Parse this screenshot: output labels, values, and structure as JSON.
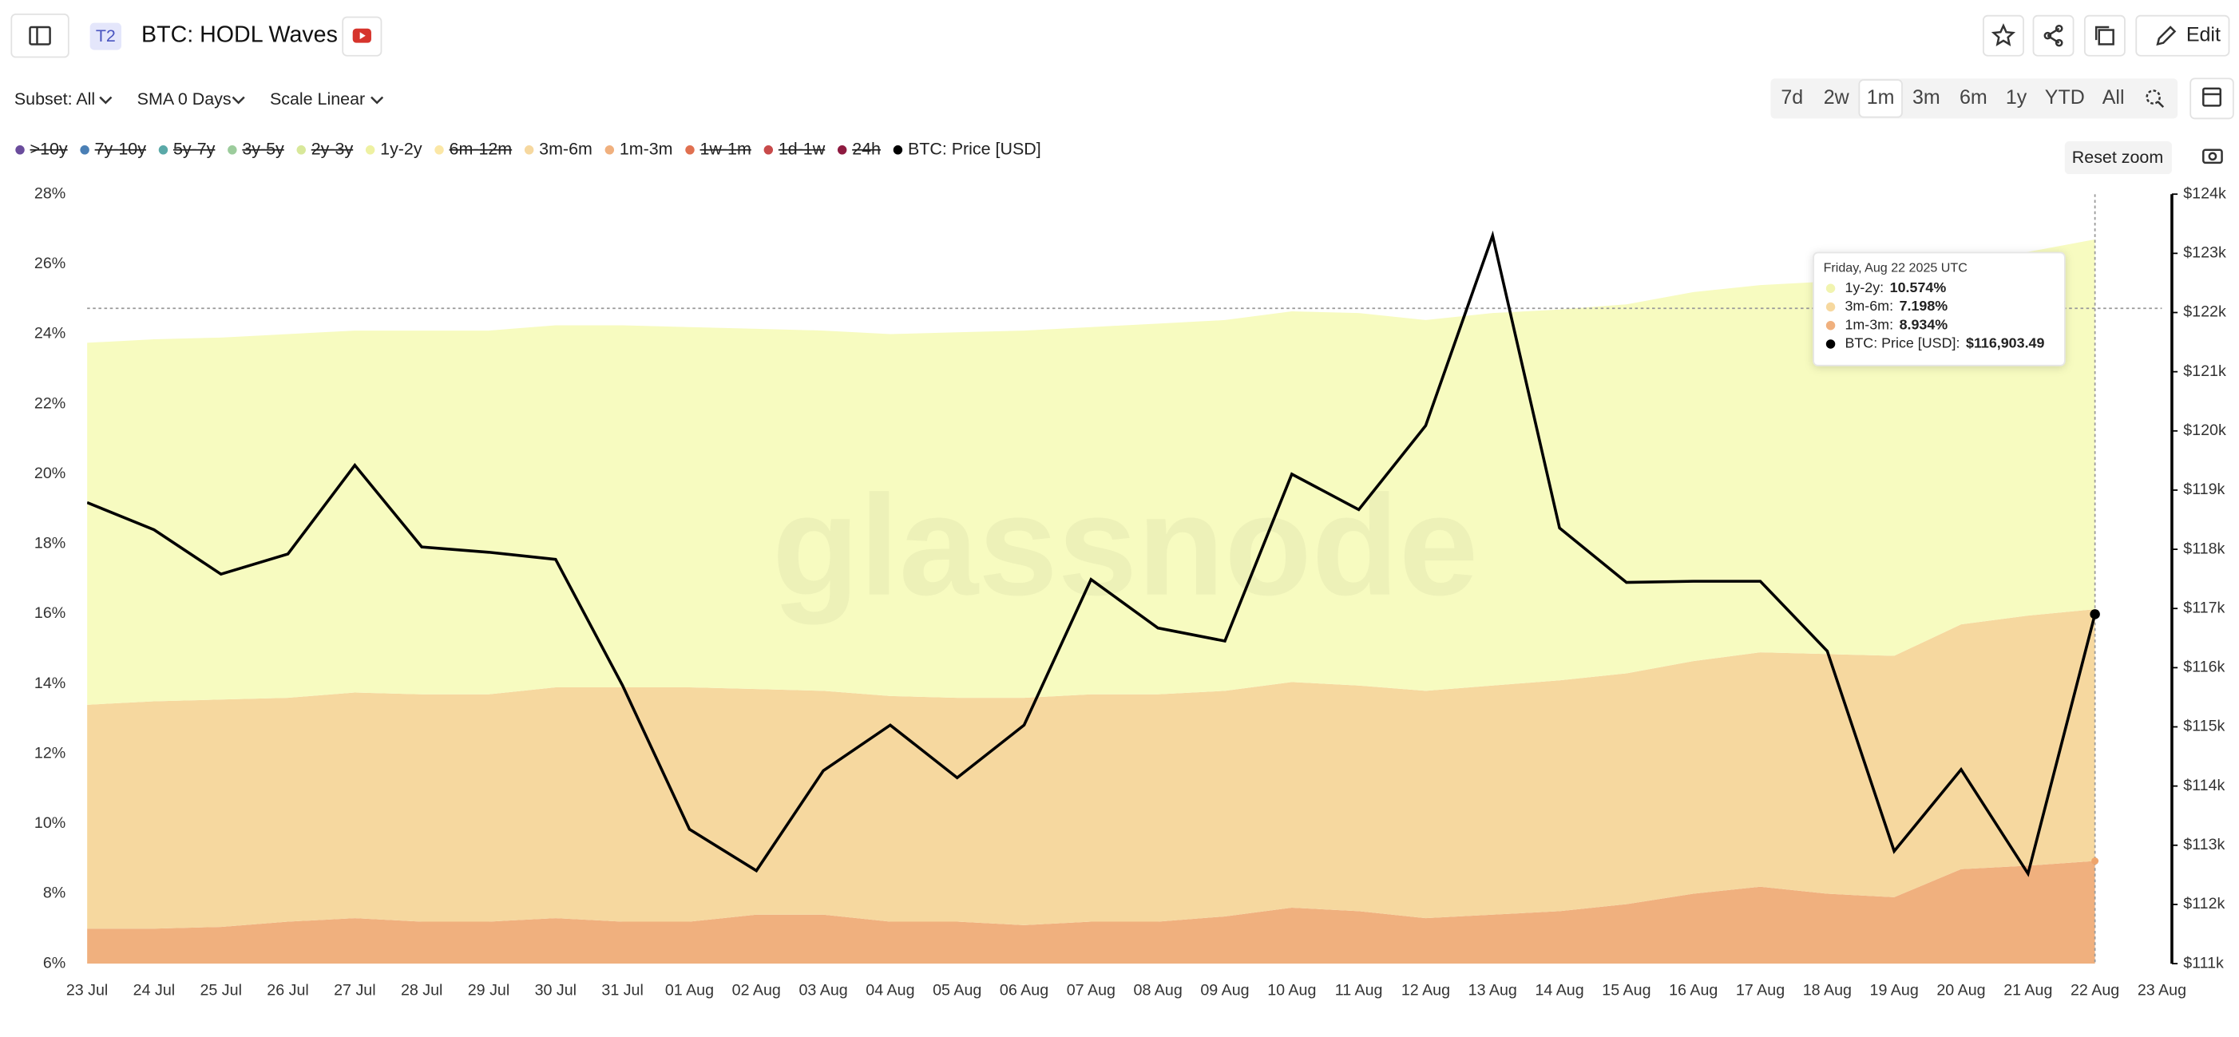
{
  "header": {
    "badge": "T2",
    "title": "BTC: HODL Waves",
    "edit": "Edit"
  },
  "toolbar": {
    "subset": "Subset: All",
    "sma": "SMA 0 Days",
    "scale": "Scale Linear",
    "ranges": [
      "7d",
      "2w",
      "1m",
      "3m",
      "6m",
      "1y",
      "YTD",
      "All"
    ],
    "selected_range": 2,
    "reset_zoom": "Reset zoom"
  },
  "watermark": "glassnode",
  "chart_data": {
    "type": "stacked-area",
    "categories": [
      "23 Jul",
      "24 Jul",
      "25 Jul",
      "26 Jul",
      "27 Jul",
      "28 Jul",
      "29 Jul",
      "30 Jul",
      "31 Jul",
      "01 Aug",
      "02 Aug",
      "03 Aug",
      "04 Aug",
      "05 Aug",
      "06 Aug",
      "07 Aug",
      "08 Aug",
      "09 Aug",
      "10 Aug",
      "11 Aug",
      "12 Aug",
      "13 Aug",
      "14 Aug",
      "15 Aug",
      "16 Aug",
      "17 Aug",
      "18 Aug",
      "19 Aug",
      "20 Aug",
      "21 Aug",
      "22 Aug",
      "23 Aug"
    ],
    "series": [
      {
        "name": ">10y",
        "color": "#6a4c9c",
        "visible": false
      },
      {
        "name": "7y-10y",
        "color": "#4a7fb5",
        "visible": false
      },
      {
        "name": "5y-7y",
        "color": "#5aa9a8",
        "visible": false
      },
      {
        "name": "3y-5y",
        "color": "#9ccc9c",
        "visible": false
      },
      {
        "name": "2y-3y",
        "color": "#d8e89a",
        "visible": false
      },
      {
        "name": "1y-2y",
        "color": "#f7fbc0",
        "visible": true,
        "stack": 2,
        "values": [
          10.35,
          10.35,
          10.35,
          10.4,
          10.35,
          10.4,
          10.4,
          10.35,
          10.35,
          10.3,
          10.3,
          10.3,
          10.35,
          10.45,
          10.5,
          10.5,
          10.6,
          10.6,
          10.6,
          10.65,
          10.6,
          10.65,
          10.6,
          10.55,
          10.55,
          10.5,
          10.65,
          10.9,
          10.3,
          10.4,
          10.574,
          null
        ]
      },
      {
        "name": "6m-12m",
        "color": "#fbe7a6",
        "visible": false
      },
      {
        "name": "3m-6m",
        "color": "#f6d89f",
        "visible": true,
        "stack": 1,
        "values": [
          6.4,
          6.5,
          6.5,
          6.4,
          6.45,
          6.5,
          6.5,
          6.6,
          6.7,
          6.7,
          6.45,
          6.4,
          6.45,
          6.4,
          6.5,
          6.5,
          6.5,
          6.45,
          6.45,
          6.45,
          6.5,
          6.55,
          6.6,
          6.6,
          6.65,
          6.7,
          6.85,
          6.9,
          7.0,
          7.15,
          7.198,
          null
        ]
      },
      {
        "name": "1m-3m",
        "color": "#f0b07e",
        "visible": true,
        "stack": 0,
        "values": [
          7.0,
          7.0,
          7.05,
          7.2,
          7.3,
          7.2,
          7.2,
          7.3,
          7.2,
          7.2,
          7.4,
          7.4,
          7.2,
          7.2,
          7.1,
          7.2,
          7.2,
          7.35,
          7.6,
          7.5,
          7.3,
          7.4,
          7.5,
          7.7,
          8.0,
          8.2,
          8.0,
          7.9,
          8.7,
          8.8,
          8.934,
          null
        ]
      },
      {
        "name": "1w-1m",
        "color": "#e07050",
        "visible": false
      },
      {
        "name": "1d-1w",
        "color": "#c84a4a",
        "visible": false
      },
      {
        "name": "24h",
        "color": "#8e1a40",
        "visible": false
      },
      {
        "name": "BTC: Price [USD]",
        "color": "#000000",
        "visible": true,
        "axis": "y2",
        "values": [
          118790,
          118330,
          117580,
          117920,
          119420,
          118040,
          117950,
          117830,
          115700,
          113270,
          112570,
          114260,
          115030,
          114140,
          115030,
          117490,
          116670,
          116450,
          119270,
          118670,
          120090,
          123300,
          118360,
          117440,
          117460,
          117460,
          116280,
          112900,
          114280,
          112520,
          116903.49,
          null
        ]
      }
    ],
    "ylim": [
      6,
      28
    ],
    "yticks": [
      {
        "value": 6,
        "label": "6%"
      },
      {
        "value": 8,
        "label": "8%"
      },
      {
        "value": 10,
        "label": "10%"
      },
      {
        "value": 12,
        "label": "12%"
      },
      {
        "value": 14,
        "label": "14%"
      },
      {
        "value": 16,
        "label": "16%"
      },
      {
        "value": 18,
        "label": "18%"
      },
      {
        "value": 20,
        "label": "20%"
      },
      {
        "value": 22,
        "label": "22%"
      },
      {
        "value": 24,
        "label": "24%"
      },
      {
        "value": 26,
        "label": "26%"
      },
      {
        "value": 28,
        "label": "28%"
      }
    ],
    "y2lim": [
      111000,
      124000
    ],
    "y2ticks": [
      {
        "value": 111000,
        "label": "$111k"
      },
      {
        "value": 112000,
        "label": "$112k"
      },
      {
        "value": 113000,
        "label": "$113k"
      },
      {
        "value": 114000,
        "label": "$114k"
      },
      {
        "value": 115000,
        "label": "$115k"
      },
      {
        "value": 116000,
        "label": "$116k"
      },
      {
        "value": 117000,
        "label": "$117k"
      },
      {
        "value": 118000,
        "label": "$118k"
      },
      {
        "value": 119000,
        "label": "$119k"
      },
      {
        "value": 120000,
        "label": "$120k"
      },
      {
        "value": 121000,
        "label": "$121k"
      },
      {
        "value": 122000,
        "label": "$122k"
      },
      {
        "value": 123000,
        "label": "$123k"
      },
      {
        "value": 124000,
        "label": "$124k"
      }
    ],
    "grid": false,
    "tooltip": {
      "title": "Friday, Aug 22 2025 UTC",
      "index": 30,
      "series": [
        5,
        7,
        8,
        12
      ],
      "values": [
        "10.574%",
        "7.198%",
        "8.934%",
        "$116,903.49"
      ]
    }
  }
}
